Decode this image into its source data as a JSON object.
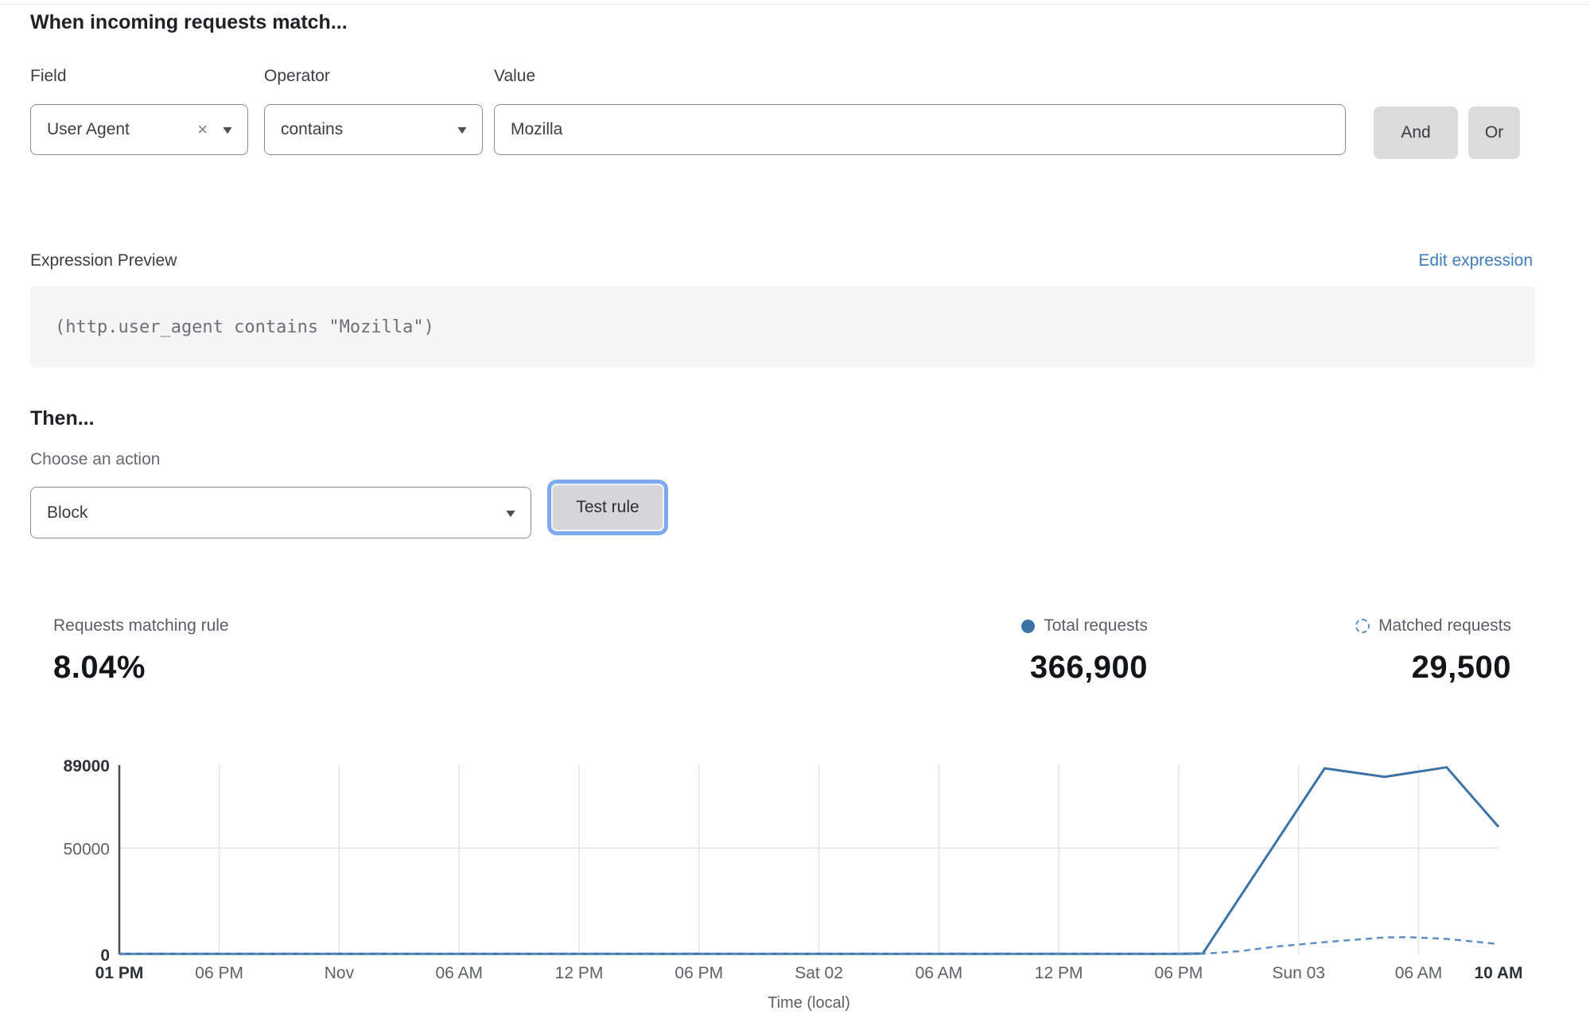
{
  "rule_builder": {
    "heading": "When incoming requests match...",
    "field": {
      "label": "Field",
      "selected": "User Agent",
      "remove_icon": "×",
      "dropdown_icon": "▼"
    },
    "operator": {
      "label": "Operator",
      "selected": "contains",
      "dropdown_icon": "▼"
    },
    "value": {
      "label": "Value",
      "text": "Mozilla"
    },
    "and_button": "And",
    "or_button": "Or"
  },
  "expression_preview": {
    "label": "Expression Preview",
    "edit_link": "Edit expression",
    "code": "(http.user_agent contains \"Mozilla\")"
  },
  "action_section": {
    "heading": "Then...",
    "label": "Choose an action",
    "selected_action": "Block",
    "dropdown_icon": "▼",
    "test_button": "Test rule"
  },
  "stats": {
    "matching_rule": {
      "label": "Requests matching rule",
      "value": "8.04%"
    },
    "total_requests": {
      "label": "Total requests",
      "value": "366,900",
      "legend_style": "solid-dot",
      "legend_color": "#3c72a6"
    },
    "matched_requests": {
      "label": "Matched requests",
      "value": "29,500",
      "legend_style": "dashed-circle",
      "legend_color": "#5d90c6"
    }
  },
  "chart_data": {
    "type": "line",
    "xlabel": "Time (local)",
    "x_unit": "hours since Fri 01 PM",
    "x_range": [
      0,
      69
    ],
    "ylim": [
      0,
      89000
    ],
    "grid": true,
    "legend_position": "above-right",
    "y_ticks": [
      {
        "v": 0,
        "label": "0",
        "bold": true,
        "grid": false
      },
      {
        "v": 50000,
        "label": "50000",
        "bold": false,
        "grid": true
      },
      {
        "v": 89000,
        "label": "89000",
        "bold": true,
        "grid": false
      }
    ],
    "x_ticks": [
      {
        "h": 0,
        "label": "01 PM",
        "bold": true,
        "grid": false
      },
      {
        "h": 5,
        "label": "06 PM",
        "bold": false,
        "grid": true
      },
      {
        "h": 11,
        "label": "Nov",
        "bold": false,
        "grid": true
      },
      {
        "h": 17,
        "label": "06 AM",
        "bold": false,
        "grid": true
      },
      {
        "h": 23,
        "label": "12 PM",
        "bold": false,
        "grid": true
      },
      {
        "h": 29,
        "label": "06 PM",
        "bold": false,
        "grid": true
      },
      {
        "h": 35,
        "label": "Sat 02",
        "bold": false,
        "grid": true
      },
      {
        "h": 41,
        "label": "06 AM",
        "bold": false,
        "grid": true
      },
      {
        "h": 47,
        "label": "12 PM",
        "bold": false,
        "grid": true
      },
      {
        "h": 53,
        "label": "06 PM",
        "bold": false,
        "grid": true
      },
      {
        "h": 59,
        "label": "Sun 03",
        "bold": false,
        "grid": true
      },
      {
        "h": 65,
        "label": "06 AM",
        "bold": false,
        "grid": true
      },
      {
        "h": 69,
        "label": "10 AM",
        "bold": true,
        "grid": false
      }
    ],
    "series": [
      {
        "name": "Total requests",
        "style": "solid",
        "color": "#3c72a6",
        "width": 3,
        "points": [
          [
            0,
            250
          ],
          [
            53,
            250
          ],
          [
            54.2,
            400
          ],
          [
            60.3,
            87500
          ],
          [
            63.3,
            83500
          ],
          [
            66.4,
            88000
          ],
          [
            69,
            60000
          ]
        ]
      },
      {
        "name": "Matched requests",
        "style": "dashed",
        "color": "#5d90c6",
        "width": 2.5,
        "points": [
          [
            0,
            150
          ],
          [
            53,
            150
          ],
          [
            54.2,
            300
          ],
          [
            56,
            1500
          ],
          [
            58,
            3800
          ],
          [
            60.3,
            5800
          ],
          [
            63.3,
            8000
          ],
          [
            64.5,
            8100
          ],
          [
            66.4,
            7300
          ],
          [
            69,
            4900
          ]
        ]
      }
    ]
  }
}
